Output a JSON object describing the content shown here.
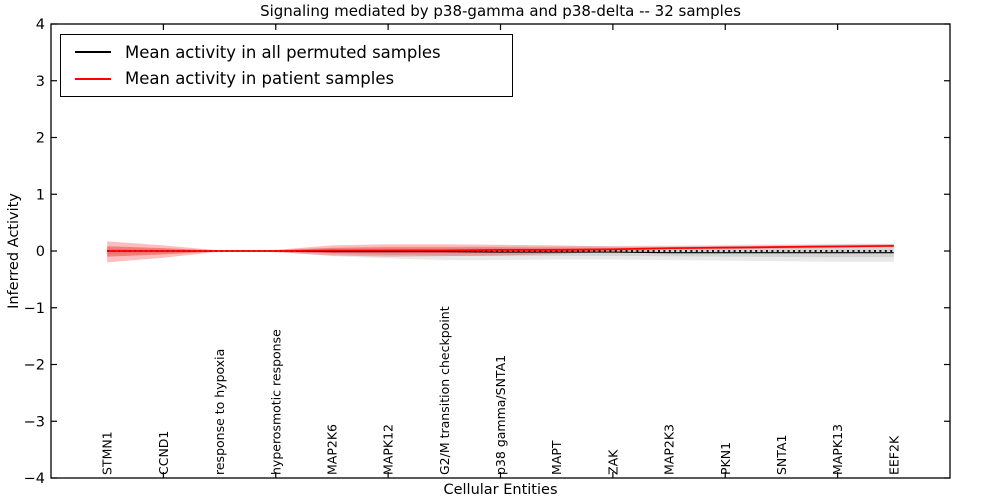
{
  "chart_data": {
    "type": "line",
    "title": "Signaling mediated by p38-gamma and p38-delta -- 32 samples",
    "xlabel": "Cellular Entities",
    "ylabel": "Inferred Activity",
    "xlim": [
      -1,
      15
    ],
    "ylim": [
      -4,
      4
    ],
    "grid": false,
    "yticks": {
      "values": [
        4,
        3,
        2,
        1,
        0,
        -1,
        -2,
        -3,
        -4
      ],
      "labels": [
        "4",
        "3",
        "2",
        "1",
        "0",
        "−1",
        "−2",
        "−3",
        "−4"
      ]
    },
    "xtick_positions": [
      1,
      3,
      5,
      7,
      9,
      11,
      13
    ],
    "categories": [
      "STMN1",
      "CCND1",
      "response to hypoxia",
      "hyperosmotic response",
      "MAP2K6",
      "MAPK12",
      "G2/M transition checkpoint",
      "p38 gamma/SNTA1",
      "MAPT",
      "ZAK",
      "MAP2K3",
      "PKN1",
      "SNTA1",
      "MAPK13",
      "EEF2K"
    ],
    "zero_line": {
      "value": 0,
      "style": "dashed",
      "color": "#000000"
    },
    "legend": {
      "position": "upper left",
      "entries": [
        {
          "label": "Mean activity in all permuted samples",
          "color": "#000000"
        },
        {
          "label": "Mean activity in patient samples",
          "color": "#ff0000"
        }
      ]
    },
    "series": [
      {
        "name": "Mean activity in all permuted samples",
        "color": "#000000",
        "band_color": "rgba(0,0,0,0.085)",
        "values": [
          0,
          0,
          0,
          0,
          -0.01,
          -0.01,
          -0.01,
          -0.02,
          -0.02,
          -0.02,
          -0.03,
          -0.03,
          -0.03,
          -0.03,
          -0.03
        ],
        "band_upper": [
          0.08,
          0.05,
          0.01,
          0.02,
          0.06,
          0.08,
          0.08,
          0.08,
          0.08,
          0.09,
          0.1,
          0.11,
          0.12,
          0.13,
          0.13
        ],
        "band_lower": [
          -0.1,
          -0.06,
          -0.01,
          -0.02,
          -0.09,
          -0.13,
          -0.16,
          -0.16,
          -0.15,
          -0.15,
          -0.16,
          -0.17,
          -0.18,
          -0.19,
          -0.19
        ]
      },
      {
        "name": "Mean activity in patient samples",
        "color": "#ff0000",
        "band_color": "rgba(255,0,0,0.26)",
        "values": [
          0,
          0,
          0,
          0,
          0.01,
          0.01,
          0.01,
          0.02,
          0.02,
          0.03,
          0.05,
          0.06,
          0.07,
          0.08,
          0.09
        ],
        "band_upper": [
          0.17,
          0.1,
          0.01,
          0.02,
          0.1,
          0.12,
          0.12,
          0.11,
          0.1,
          0.08,
          0.08,
          0.09,
          0.1,
          0.11,
          0.12
        ],
        "band_lower": [
          -0.2,
          -0.12,
          -0.01,
          -0.02,
          -0.08,
          -0.1,
          -0.09,
          -0.08,
          -0.05,
          -0.01,
          0.02,
          0.03,
          0.04,
          0.05,
          0.06
        ]
      }
    ]
  }
}
